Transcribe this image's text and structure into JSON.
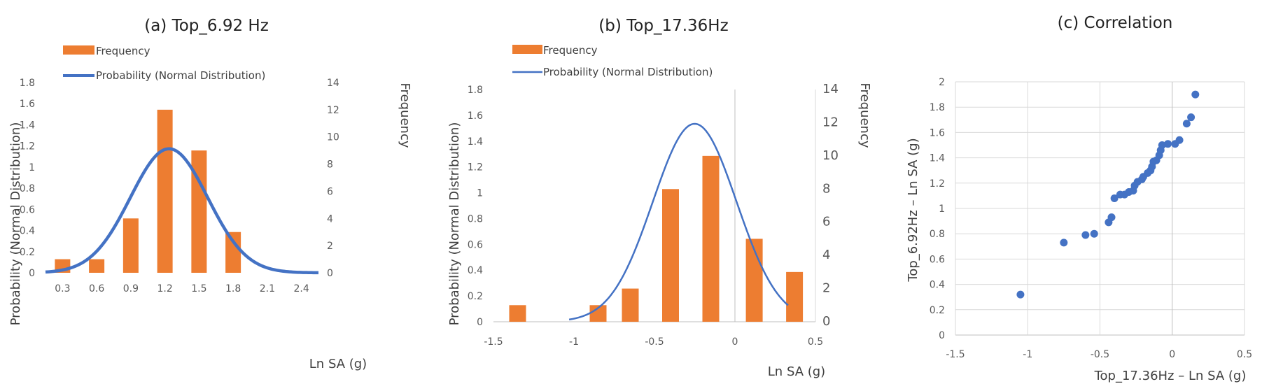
{
  "chart_data": [
    {
      "id": "a",
      "type": "bar+line",
      "title": "(a) Top_6.92  Hz",
      "xlabel": "Ln SA (g)",
      "ylabel": "Probability (Normal Distribution)",
      "y2label": "Frequency",
      "legend": [
        "Frequency",
        "Probability (Normal Distribution)"
      ],
      "legend_placement": "top-left",
      "categories": [
        "0.3",
        "0.6",
        "0.9",
        "1.2",
        "1.5",
        "1.8",
        "2.1",
        "2.4"
      ],
      "frequency": [
        1,
        1,
        4,
        12,
        9,
        3,
        0,
        0
      ],
      "y_ticks": [
        "0",
        "0.2",
        "0.4",
        "0.6",
        "0.8",
        "1",
        "1.2",
        "1.4",
        "1.6",
        "1.8"
      ],
      "y2_ticks": [
        "0",
        "2",
        "4",
        "6",
        "8",
        "10",
        "12",
        "14"
      ],
      "ylim": [
        0,
        1.8
      ],
      "y2lim": [
        0,
        14
      ],
      "normal": {
        "mean": 1.236,
        "sd": 0.34,
        "x_range": [
          0.15,
          2.55
        ]
      },
      "colors": {
        "bar": "#ED7D31",
        "line": "#4472C4"
      }
    },
    {
      "id": "b",
      "type": "bar+line",
      "title": "(b) Top_17.36Hz",
      "xlabel": "Ln SA (g)",
      "ylabel": "Probability (Normal Distribution)",
      "y2label": "Frequency",
      "legend": [
        "Frequency",
        "Probability (Normal Distribution)"
      ],
      "legend_placement": "top-left",
      "x_ticks": [
        "-1.5",
        "-1",
        "-0.5",
        "0",
        "0.5"
      ],
      "xlim": [
        -1.5,
        0.5
      ],
      "bar_x": [
        -1.35,
        -0.85,
        -0.65,
        -0.4,
        -0.15,
        0.12,
        0.37
      ],
      "frequency": [
        1,
        1,
        2,
        8,
        10,
        5,
        3
      ],
      "y_ticks": [
        "0",
        "0.2",
        "0.4",
        "0.6",
        "0.8",
        "1",
        "1.2",
        "1.4",
        "1.6",
        "1.8"
      ],
      "y2_ticks": [
        "0",
        "2",
        "4",
        "6",
        "8",
        "10",
        "12",
        "14"
      ],
      "ylim": [
        0,
        1.8
      ],
      "y2lim": [
        0,
        14
      ],
      "normal": {
        "mean": -0.25,
        "sd": 0.26,
        "x_range": [
          -1.03,
          0.33
        ]
      },
      "colors": {
        "bar": "#ED7D31",
        "line": "#4472C4"
      }
    },
    {
      "id": "c",
      "type": "scatter",
      "title": "(c) Correlation",
      "xlabel": "Top_17.36Hz – Ln SA (g)",
      "ylabel": "Top_6.92Hz – Ln SA (g)",
      "x_ticks": [
        "-1.5",
        "-1",
        "-0.5",
        "0",
        "0.5"
      ],
      "y_ticks": [
        "0",
        "0.2",
        "0.4",
        "0.6",
        "0.8",
        "1",
        "1.2",
        "1.4",
        "1.6",
        "1.8",
        "2"
      ],
      "xlim": [
        -1.5,
        0.5
      ],
      "ylim": [
        0,
        2
      ],
      "points": [
        [
          -1.05,
          0.32
        ],
        [
          -0.75,
          0.73
        ],
        [
          -0.6,
          0.79
        ],
        [
          -0.54,
          0.8
        ],
        [
          -0.44,
          0.89
        ],
        [
          -0.42,
          0.93
        ],
        [
          -0.4,
          1.08
        ],
        [
          -0.36,
          1.11
        ],
        [
          -0.33,
          1.11
        ],
        [
          -0.3,
          1.13
        ],
        [
          -0.27,
          1.14
        ],
        [
          -0.26,
          1.18
        ],
        [
          -0.24,
          1.21
        ],
        [
          -0.21,
          1.23
        ],
        [
          -0.2,
          1.25
        ],
        [
          -0.17,
          1.28
        ],
        [
          -0.15,
          1.3
        ],
        [
          -0.14,
          1.33
        ],
        [
          -0.13,
          1.37
        ],
        [
          -0.11,
          1.38
        ],
        [
          -0.09,
          1.42
        ],
        [
          -0.08,
          1.46
        ],
        [
          -0.07,
          1.5
        ],
        [
          -0.03,
          1.51
        ],
        [
          0.02,
          1.51
        ],
        [
          0.05,
          1.54
        ],
        [
          0.1,
          1.67
        ],
        [
          0.13,
          1.72
        ],
        [
          0.16,
          1.9
        ]
      ],
      "colors": {
        "point": "#4472C4"
      }
    }
  ]
}
